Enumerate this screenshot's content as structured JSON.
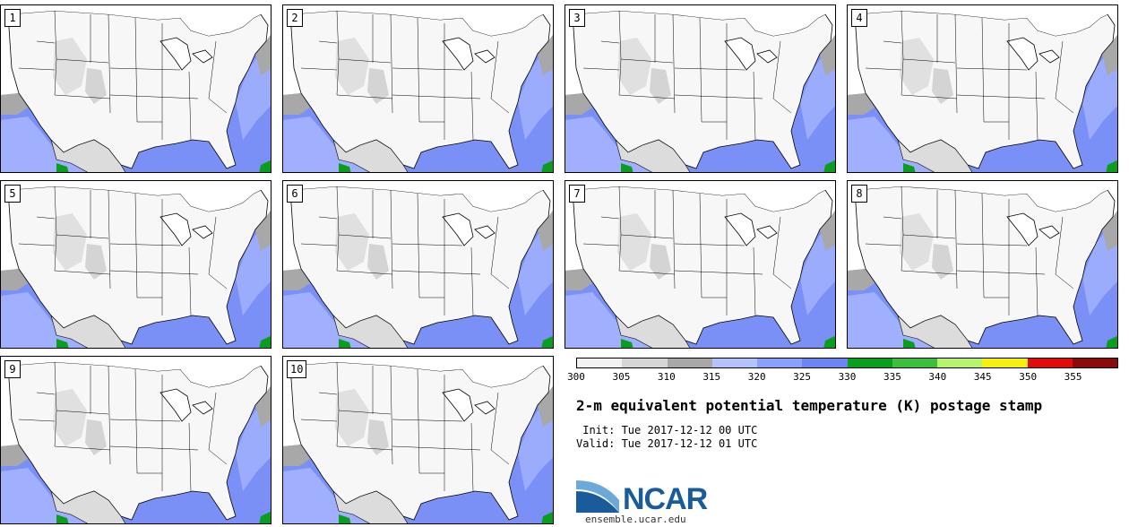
{
  "panels": [
    "1",
    "2",
    "3",
    "4",
    "5",
    "6",
    "7",
    "8",
    "9",
    "10"
  ],
  "colorbar": {
    "labels": [
      "300",
      "305",
      "310",
      "315",
      "320",
      "325",
      "330",
      "335",
      "340",
      "345",
      "350",
      "355"
    ],
    "colors": [
      "#f2f2f2",
      "#d6d6d6",
      "#a8a8a8",
      "#b3c3ff",
      "#8aa0ff",
      "#6d84f5",
      "#0a9e1e",
      "#3cc03c",
      "#b6f36e",
      "#f7ee12",
      "#e10b0b",
      "#8b0b0b"
    ]
  },
  "title": "2-m equivalent potential temperature (K) postage stamp",
  "init": " Init: Tue 2017-12-12 00 UTC",
  "valid": "Valid: Tue 2017-12-12 01 UTC",
  "logo": {
    "text": "NCAR",
    "site": "ensemble.ucar.edu",
    "color": "#1a5b9b"
  }
}
